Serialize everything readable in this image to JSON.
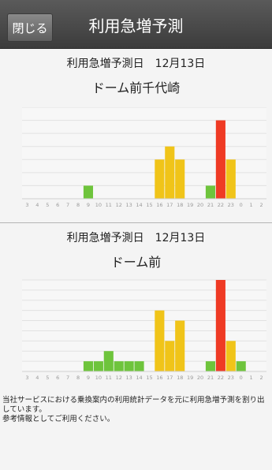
{
  "header": {
    "close_label": "閉じる",
    "title": "利用急増予測"
  },
  "sections": [
    {
      "date_line": "利用急増予測日　12月13日",
      "station": "ドーム前千代崎",
      "chart_data": {
        "type": "bar",
        "categories": [
          "3",
          "4",
          "5",
          "6",
          "7",
          "8",
          "9",
          "10",
          "11",
          "12",
          "13",
          "14",
          "15",
          "16",
          "17",
          "18",
          "19",
          "20",
          "21",
          "22",
          "23",
          "0",
          "1",
          "2"
        ],
        "values": [
          0,
          0,
          0,
          0,
          0,
          0,
          1,
          0,
          0,
          0,
          0,
          0,
          0,
          3,
          4,
          3,
          0,
          0,
          1,
          6,
          3,
          0,
          0,
          0
        ],
        "colors": [
          "green",
          "green",
          "green",
          "green",
          "green",
          "green",
          "green",
          "green",
          "green",
          "green",
          "green",
          "green",
          "green",
          "yellow",
          "yellow",
          "yellow",
          "green",
          "green",
          "green",
          "red",
          "yellow",
          "green",
          "green",
          "green"
        ],
        "ylim": [
          0,
          7
        ]
      }
    },
    {
      "date_line": "利用急増予測日　12月13日",
      "station": "ドーム前",
      "chart_data": {
        "type": "bar",
        "categories": [
          "3",
          "4",
          "5",
          "6",
          "7",
          "8",
          "9",
          "10",
          "11",
          "12",
          "13",
          "14",
          "15",
          "16",
          "17",
          "18",
          "19",
          "20",
          "21",
          "22",
          "23",
          "0",
          "1",
          "2"
        ],
        "values": [
          0,
          0,
          0,
          0,
          0,
          0,
          1,
          1,
          2,
          1,
          1,
          1,
          0,
          6,
          3,
          5,
          0,
          0,
          1,
          9,
          3,
          1,
          0,
          0
        ],
        "colors": [
          "green",
          "green",
          "green",
          "green",
          "green",
          "green",
          "green",
          "green",
          "green",
          "green",
          "green",
          "green",
          "green",
          "yellow",
          "yellow",
          "yellow",
          "green",
          "green",
          "green",
          "red",
          "yellow",
          "green",
          "green",
          "green"
        ],
        "ylim": [
          0,
          9
        ]
      }
    }
  ],
  "palette": {
    "green": "#6ec43c",
    "yellow": "#f0c419",
    "red": "#ef3a24"
  },
  "notice": [
    "当社サービスにおける乗換案内の利用統計データを元に利用急増予測を割り出しています。",
    "参考情報としてご利用ください。"
  ]
}
